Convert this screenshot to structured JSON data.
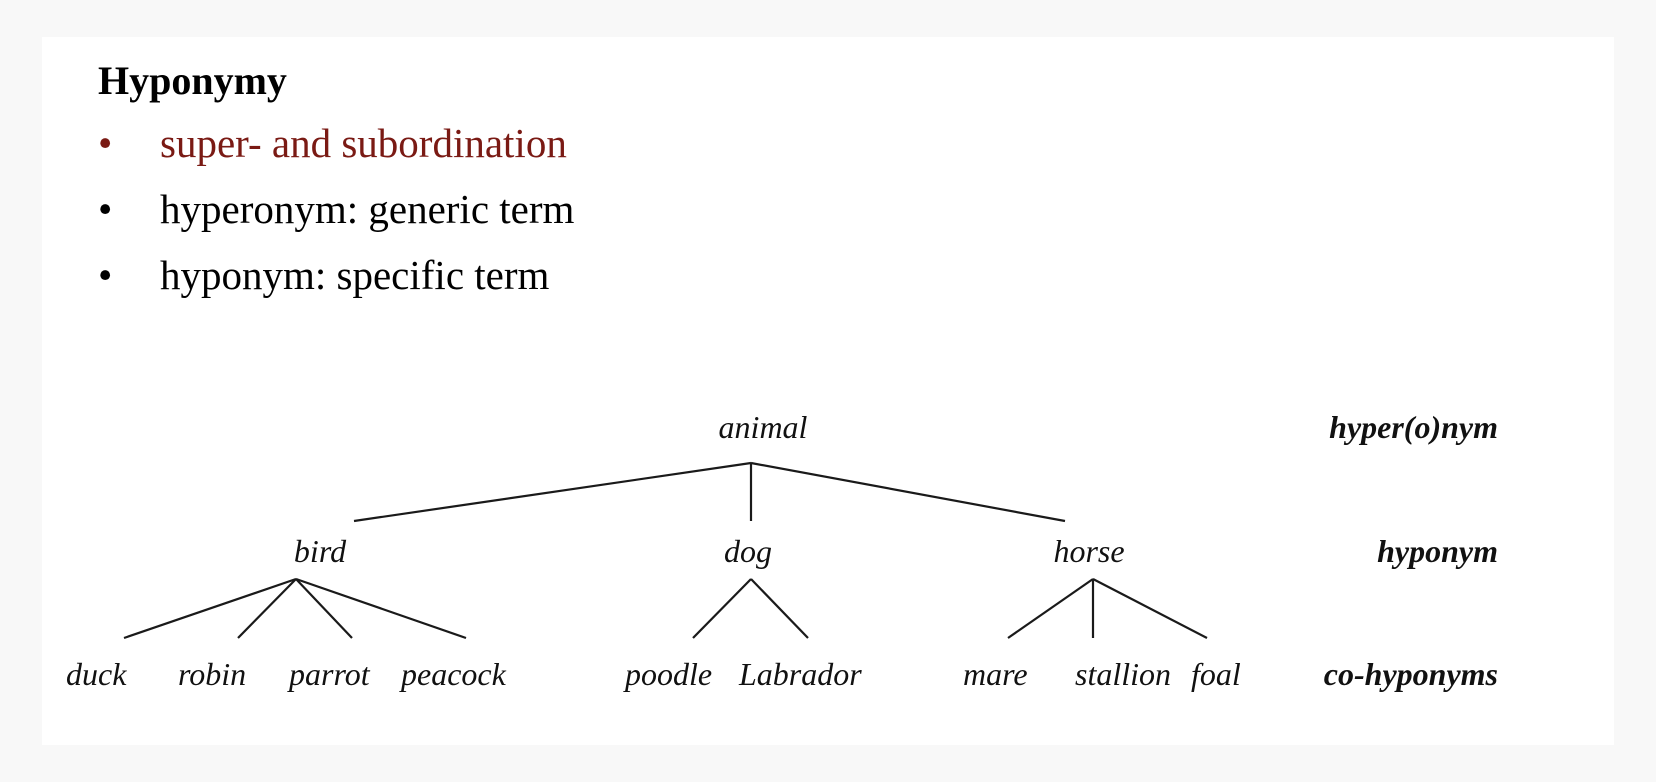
{
  "slide": {
    "title": "Hyponymy",
    "bullets": [
      {
        "text": "super- and subordination",
        "color": "#7a1a14"
      },
      {
        "text": "hyperonym: generic term",
        "color": "#000000"
      },
      {
        "text": "hyponym: specific term",
        "color": "#000000"
      }
    ],
    "bullet_glyph": "•"
  },
  "tree": {
    "root": "animal",
    "children": [
      {
        "label": "bird",
        "children": [
          "duck",
          "robin",
          "parrot",
          "peacock"
        ]
      },
      {
        "label": "dog",
        "children": [
          "poodle",
          "Labrador"
        ]
      },
      {
        "label": "horse",
        "children": [
          "mare",
          "stallion",
          "foal"
        ]
      }
    ],
    "level_labels": [
      "hyper(o)nym",
      "hyponym",
      "co-hyponyms"
    ]
  }
}
